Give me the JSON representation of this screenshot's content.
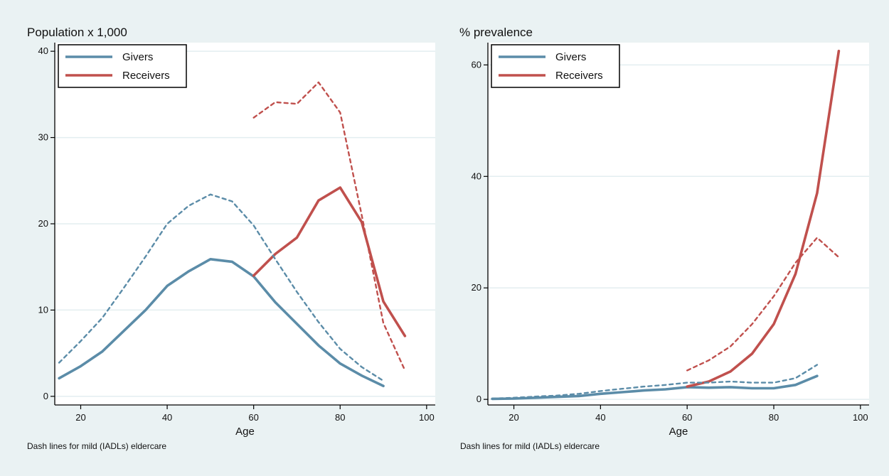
{
  "chart_data": [
    {
      "type": "line",
      "title": "Population  x 1,000",
      "xlabel": "Age",
      "ylabel": "",
      "note": "Dash lines for mild (IADLs) eldercare",
      "xlim": [
        14,
        102
      ],
      "ylim": [
        -1,
        41
      ],
      "xticks": [
        20,
        40,
        60,
        80,
        100
      ],
      "yticks": [
        0,
        10,
        20,
        30,
        40
      ],
      "grid": true,
      "legend": {
        "position": "top-left",
        "entries": [
          "Givers",
          "Receivers"
        ]
      },
      "colors": {
        "givers": "#5b8ca8",
        "receivers": "#c0504d"
      },
      "series": [
        {
          "name": "Givers",
          "style": "solid",
          "color": "#5b8ca8",
          "x": [
            15,
            20,
            25,
            30,
            35,
            40,
            45,
            50,
            55,
            60,
            65,
            70,
            75,
            80,
            85,
            90
          ],
          "y": [
            2.1,
            3.5,
            5.2,
            7.6,
            10.0,
            12.8,
            14.5,
            15.9,
            15.6,
            13.9,
            10.9,
            8.4,
            5.9,
            3.8,
            2.4,
            1.2
          ]
        },
        {
          "name": "Receivers",
          "style": "solid",
          "color": "#c0504d",
          "x": [
            60,
            65,
            70,
            75,
            80,
            85,
            90,
            95
          ],
          "y": [
            14.0,
            16.5,
            18.4,
            22.7,
            24.2,
            20.2,
            11.0,
            7.0
          ]
        },
        {
          "name": "Givers",
          "style": "dashed",
          "color": "#5b8ca8",
          "x": [
            15,
            20,
            25,
            30,
            35,
            40,
            45,
            50,
            55,
            60,
            65,
            70,
            75,
            80,
            85,
            90
          ],
          "y": [
            3.9,
            6.4,
            9.1,
            12.6,
            16.2,
            20.0,
            22.1,
            23.4,
            22.6,
            19.8,
            15.9,
            12.1,
            8.6,
            5.5,
            3.4,
            1.8
          ]
        },
        {
          "name": "Receivers",
          "style": "dashed",
          "color": "#c0504d",
          "x": [
            60,
            65,
            70,
            75,
            80,
            85,
            90,
            95
          ],
          "y": [
            32.3,
            34.1,
            33.9,
            36.4,
            32.9,
            21.0,
            8.5,
            3.0
          ]
        }
      ]
    },
    {
      "type": "line",
      "title": "% prevalence",
      "xlabel": "Age",
      "ylabel": "",
      "note": "Dash lines for mild (IADLs) eldercare",
      "xlim": [
        14,
        102
      ],
      "ylim": [
        -1,
        64
      ],
      "xticks": [
        20,
        40,
        60,
        80,
        100
      ],
      "yticks": [
        0,
        20,
        40,
        60
      ],
      "grid": true,
      "legend": {
        "position": "top-left",
        "entries": [
          "Givers",
          "Receivers"
        ]
      },
      "colors": {
        "givers": "#5b8ca8",
        "receivers": "#c0504d"
      },
      "series": [
        {
          "name": "Givers",
          "style": "solid",
          "color": "#5b8ca8",
          "x": [
            15,
            20,
            25,
            30,
            35,
            40,
            45,
            50,
            55,
            60,
            65,
            70,
            75,
            80,
            85,
            90
          ],
          "y": [
            0.1,
            0.15,
            0.3,
            0.45,
            0.6,
            1.0,
            1.3,
            1.6,
            1.8,
            2.2,
            2.1,
            2.2,
            2.0,
            2.0,
            2.6,
            4.2
          ]
        },
        {
          "name": "Receivers",
          "style": "solid",
          "color": "#c0504d",
          "x": [
            60,
            65,
            70,
            75,
            80,
            85,
            90,
            95
          ],
          "y": [
            2.3,
            3.2,
            5.0,
            8.2,
            13.5,
            22.5,
            37.0,
            62.5
          ]
        },
        {
          "name": "Givers",
          "style": "dashed",
          "color": "#5b8ca8",
          "x": [
            15,
            20,
            25,
            30,
            35,
            40,
            45,
            50,
            55,
            60,
            65,
            70,
            75,
            80,
            85,
            90
          ],
          "y": [
            0.15,
            0.3,
            0.5,
            0.7,
            1.0,
            1.5,
            1.9,
            2.3,
            2.6,
            3.0,
            3.0,
            3.2,
            3.0,
            3.0,
            3.8,
            6.2
          ]
        },
        {
          "name": "Receivers",
          "style": "dashed",
          "color": "#c0504d",
          "x": [
            60,
            65,
            70,
            75,
            80,
            85,
            90,
            95
          ],
          "y": [
            5.2,
            7.0,
            9.5,
            13.5,
            18.5,
            24.5,
            29.0,
            25.5
          ]
        }
      ]
    }
  ]
}
